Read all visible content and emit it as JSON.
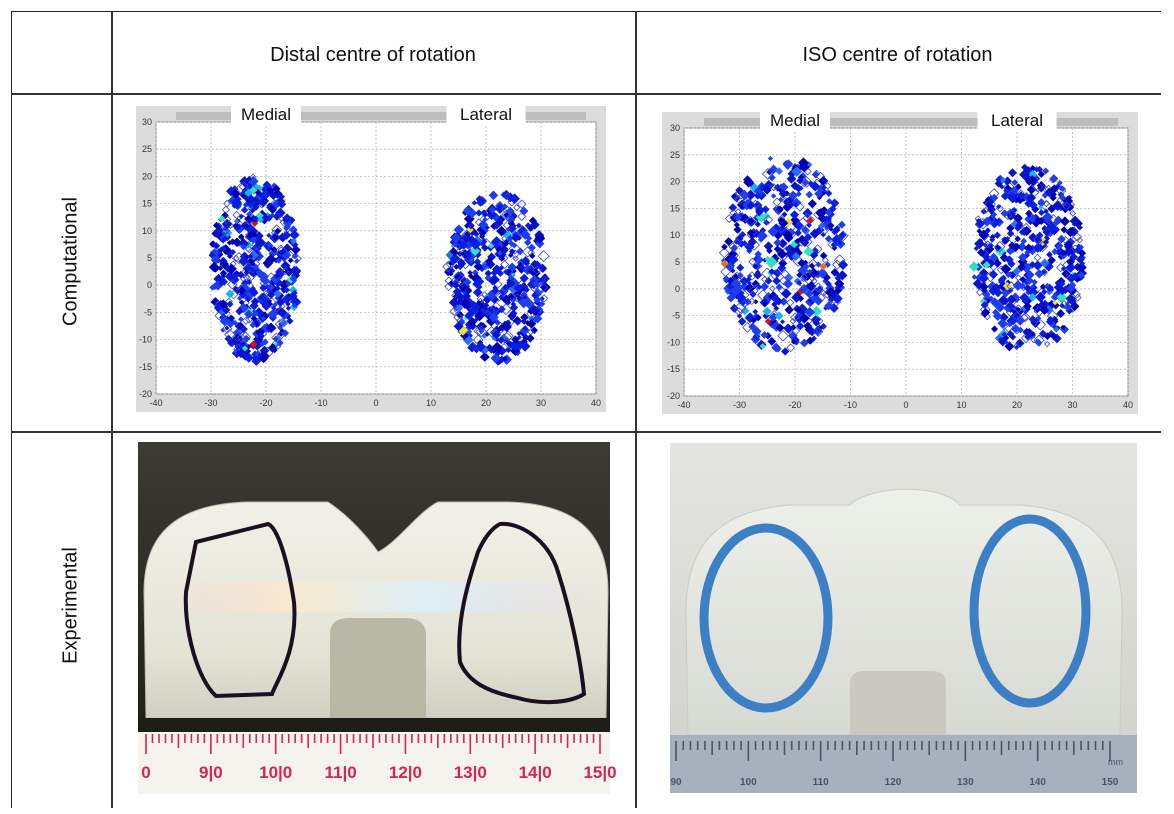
{
  "columns": [
    "Distal centre of rotation",
    "ISO centre of rotation"
  ],
  "rows": [
    "Computational",
    "Experimental"
  ],
  "chart_data": [
    {
      "type": "scatter",
      "title": "",
      "regions": [
        "Medial",
        "Lateral"
      ],
      "xlim": [
        -40,
        40
      ],
      "ylim": [
        -20,
        30
      ],
      "xticks": [
        -40,
        -30,
        -20,
        -10,
        0,
        10,
        20,
        30,
        40
      ],
      "yticks": [
        -20,
        -15,
        -10,
        -5,
        0,
        5,
        10,
        15,
        20,
        25,
        30
      ],
      "grid": true,
      "contact_regions": [
        {
          "name": "Medial",
          "x_range": [
            -30,
            -14
          ],
          "y_range": [
            -14,
            20
          ]
        },
        {
          "name": "Lateral",
          "x_range": [
            13,
            31
          ],
          "y_range": [
            -14,
            17
          ]
        }
      ]
    },
    {
      "type": "scatter",
      "title": "",
      "regions": [
        "Medial",
        "Lateral"
      ],
      "xlim": [
        -40,
        40
      ],
      "ylim": [
        -20,
        30
      ],
      "xticks": [
        -40,
        -30,
        -20,
        -10,
        0,
        10,
        20,
        30,
        40
      ],
      "yticks": [
        -20,
        -15,
        -10,
        -5,
        0,
        5,
        10,
        15,
        20,
        25,
        30
      ],
      "grid": true,
      "contact_regions": [
        {
          "name": "Medial",
          "x_range": [
            -33,
            -11
          ],
          "y_range": [
            -12,
            25
          ]
        },
        {
          "name": "Lateral",
          "x_range": [
            12,
            32
          ],
          "y_range": [
            -12,
            23
          ]
        }
      ]
    }
  ],
  "photos": [
    {
      "ruler_labels": [
        "0",
        "9|0",
        "10|0",
        "11|0",
        "12|0",
        "13|0",
        "14|0",
        "15|0"
      ],
      "ruler_color": "#d8244f"
    },
    {
      "ruler_labels": [
        "90",
        "100",
        "110",
        "120",
        "130",
        "140",
        "150"
      ],
      "ruler_unit": "mm",
      "ruler_color": "#8a95a8"
    }
  ]
}
